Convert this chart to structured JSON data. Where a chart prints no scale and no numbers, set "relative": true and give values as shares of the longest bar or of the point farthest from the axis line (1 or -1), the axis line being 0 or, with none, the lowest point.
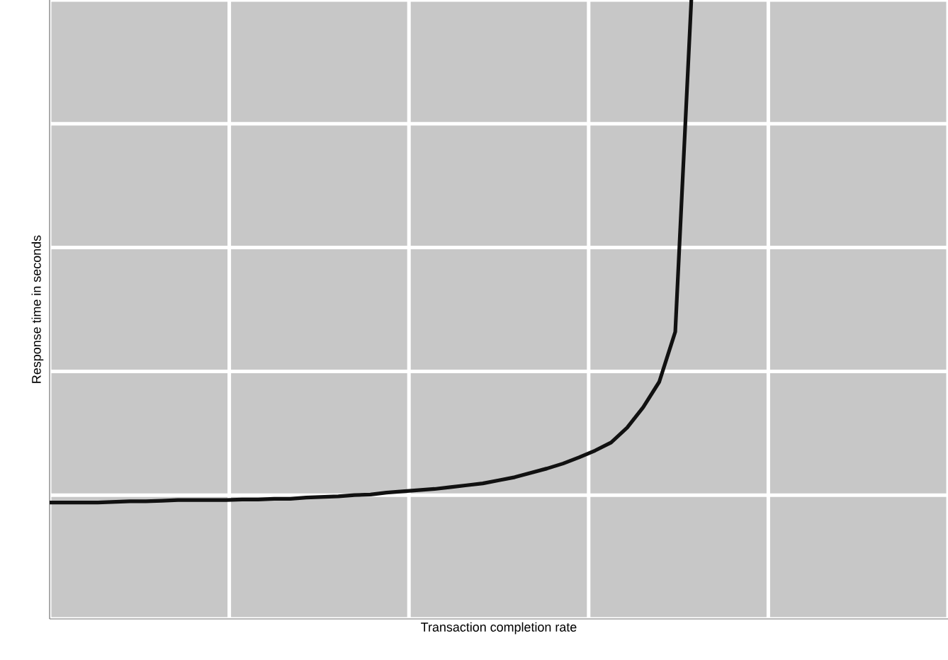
{
  "chart_data": {
    "type": "line",
    "relative": true,
    "xlabel": "Transaction completion rate",
    "ylabel": "Response time in seconds",
    "grid": true,
    "color": "#111111",
    "marker": "none",
    "line_style": "solid",
    "categories": [
      null,
      null,
      null,
      null,
      null,
      null,
      null,
      null,
      null,
      null,
      null,
      null,
      null,
      null,
      null,
      null,
      null,
      null,
      null,
      null,
      null,
      null,
      null,
      null,
      null,
      null,
      null,
      null,
      null,
      null,
      null,
      null,
      null,
      null,
      null,
      null,
      null,
      null,
      null,
      null,
      null,
      null,
      null,
      null,
      null,
      null,
      null,
      null,
      null,
      null,
      null,
      null,
      null,
      null,
      null,
      null,
      null
    ],
    "values": [
      0.188,
      0.188,
      0.188,
      0.188,
      0.189,
      0.19,
      0.19,
      0.191,
      0.192,
      0.192,
      0.192,
      0.192,
      0.193,
      0.193,
      0.194,
      0.194,
      0.196,
      0.197,
      0.198,
      0.2,
      0.201,
      0.204,
      0.206,
      0.208,
      0.21,
      0.213,
      0.216,
      0.219,
      0.224,
      0.229,
      0.236,
      0.243,
      0.251,
      0.261,
      0.272,
      0.285,
      0.309,
      0.342,
      0.383,
      0.464,
      1,
      null,
      null,
      null,
      null,
      null,
      null,
      null,
      null,
      null,
      null,
      null,
      null,
      null,
      null,
      null,
      null
    ]
  }
}
